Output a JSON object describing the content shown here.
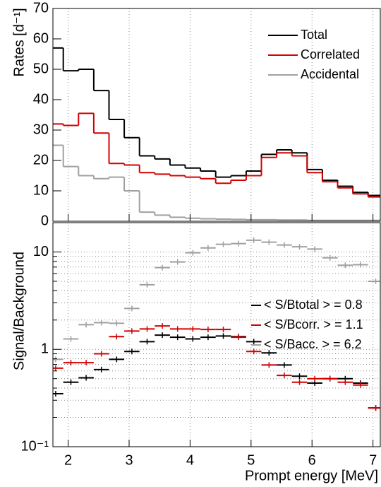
{
  "chart_data": [
    {
      "type": "histogram",
      "ylabel": "Rates [d⁻¹]",
      "legend": "top-right",
      "bins": [
        1.67,
        1.92,
        2.17,
        2.42,
        2.67,
        2.92,
        3.17,
        3.42,
        3.67,
        3.92,
        4.17,
        4.42,
        4.67,
        4.92,
        5.17,
        5.42,
        5.67,
        5.92,
        6.17,
        6.42,
        6.67,
        6.92,
        7.17
      ],
      "xlim": [
        1.75,
        7.12
      ],
      "ylim": [
        0,
        70
      ],
      "yticks": [
        0,
        10,
        20,
        30,
        40,
        50,
        60,
        70
      ],
      "grid": true,
      "series": [
        {
          "name": "Total",
          "color": "#000000",
          "values": [
            57,
            49.5,
            50,
            43,
            33.5,
            27.5,
            21.5,
            20.5,
            18.5,
            17.5,
            16.5,
            14.5,
            15,
            16.5,
            22,
            23.5,
            22.5,
            17,
            13.5,
            11.5,
            9.5,
            8.5
          ]
        },
        {
          "name": "Correlated",
          "color": "#d40000",
          "values": [
            32,
            31.5,
            35.5,
            29,
            19,
            18.5,
            16,
            15.5,
            15,
            14.5,
            14,
            12.5,
            13.5,
            15,
            21,
            22.5,
            21.5,
            16,
            13,
            11,
            9,
            8
          ]
        },
        {
          "name": "Accidental",
          "color": "#a0a0a0",
          "values": [
            25,
            18,
            15,
            14,
            14.5,
            10,
            3,
            2,
            1.3,
            1,
            0.8,
            0.7,
            0.6,
            0.5,
            0.5,
            0.4,
            0.4,
            0.3,
            0.3,
            0.3,
            0.3,
            0.3
          ]
        }
      ]
    },
    {
      "type": "histogram",
      "ylabel": "Signal/Background",
      "xlabel": "Prompt energy [MeV]",
      "log_scale": true,
      "legend": "right",
      "bins": [
        1.67,
        1.92,
        2.17,
        2.42,
        2.67,
        2.92,
        3.17,
        3.42,
        3.67,
        3.92,
        4.17,
        4.42,
        4.67,
        4.92,
        5.17,
        5.42,
        5.67,
        5.92,
        6.17,
        6.42,
        6.67,
        6.92,
        7.17
      ],
      "xlim": [
        1.75,
        7.12
      ],
      "xticks": [
        2,
        3,
        4,
        5,
        6,
        7
      ],
      "ylim": [
        0.1,
        20
      ],
      "yticks": [
        {
          "value": 0.1,
          "label": "10⁻¹"
        },
        1,
        10
      ],
      "grid": true,
      "series": [
        {
          "name": "< S/Btotal > = 0.8",
          "color": "#000000",
          "values": [
            0.35,
            0.46,
            0.51,
            0.62,
            0.79,
            0.95,
            1.2,
            1.4,
            1.33,
            1.28,
            1.33,
            1.37,
            1.35,
            1.2,
            0.92,
            0.69,
            0.53,
            0.45,
            0.5,
            0.5,
            0.45,
            0.25
          ]
        },
        {
          "name": "< S/Bcorr. > = 1.1",
          "color": "#d40000",
          "values": [
            0.64,
            0.73,
            0.73,
            0.9,
            1.35,
            1.54,
            1.62,
            1.74,
            1.62,
            1.62,
            1.6,
            1.6,
            1.33,
            0.95,
            0.69,
            0.54,
            0.46,
            0.5,
            0.5,
            0.46,
            0.43,
            0.25
          ]
        },
        {
          "name": "< S/Bacc. > = 6.2",
          "color": "#a0a0a0",
          "values": [
            0.79,
            1.28,
            1.79,
            1.88,
            1.85,
            2.63,
            4.6,
            6.9,
            7.9,
            9.8,
            11,
            12,
            12.2,
            13.2,
            12.6,
            11.8,
            11.3,
            10.7,
            8.7,
            7.3,
            7.4,
            5
          ]
        }
      ]
    }
  ]
}
